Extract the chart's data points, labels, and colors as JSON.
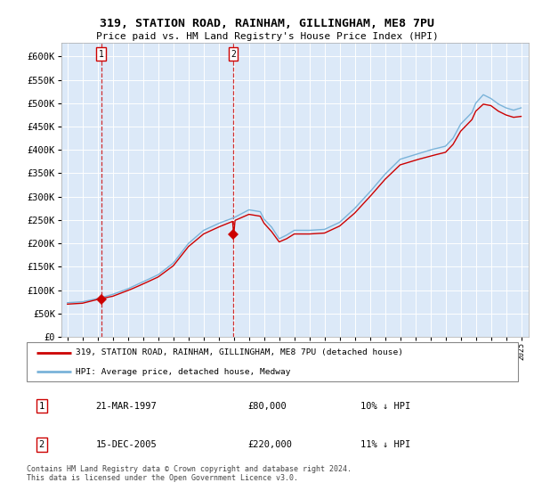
{
  "title1": "319, STATION ROAD, RAINHAM, GILLINGHAM, ME8 7PU",
  "title2": "Price paid vs. HM Land Registry's House Price Index (HPI)",
  "bg_color": "#dce9f8",
  "hpi_color": "#7ab3d9",
  "price_color": "#cc0000",
  "ylim": [
    0,
    630000
  ],
  "yticks": [
    0,
    50000,
    100000,
    150000,
    200000,
    250000,
    300000,
    350000,
    400000,
    450000,
    500000,
    550000,
    600000
  ],
  "sale1_date": 1997.22,
  "sale1_price": 80000,
  "sale2_date": 2005.96,
  "sale2_price": 220000,
  "legend_label_red": "319, STATION ROAD, RAINHAM, GILLINGHAM, ME8 7PU (detached house)",
  "legend_label_blue": "HPI: Average price, detached house, Medway",
  "annotation1_text": "21-MAR-1997",
  "annotation1_price": "£80,000",
  "annotation1_hpi": "10% ↓ HPI",
  "annotation2_text": "15-DEC-2005",
  "annotation2_price": "£220,000",
  "annotation2_hpi": "11% ↓ HPI",
  "footer": "Contains HM Land Registry data © Crown copyright and database right 2024.\nThis data is licensed under the Open Government Licence v3.0."
}
